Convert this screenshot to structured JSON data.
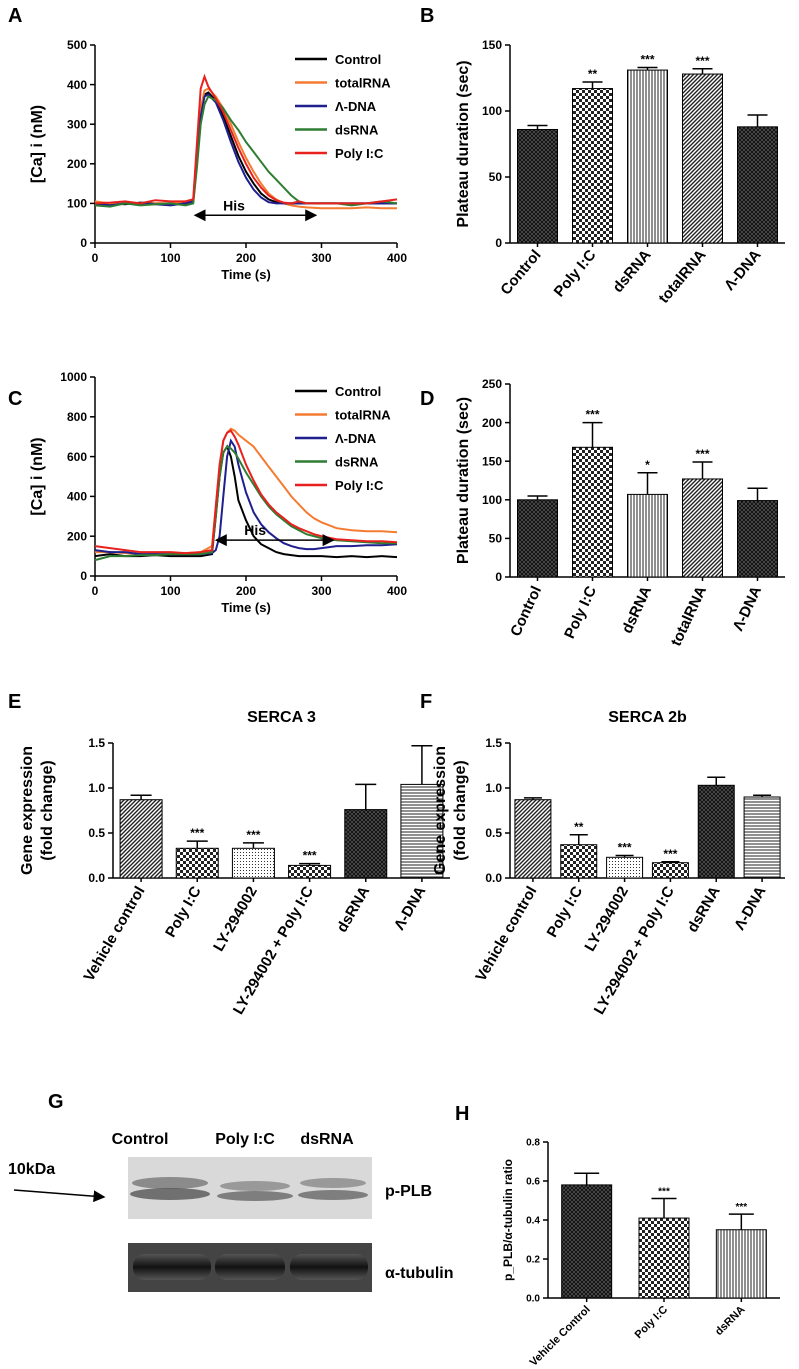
{
  "chart_data": [
    {
      "type": "line",
      "panel": "A",
      "xlabel": "Time (s)",
      "ylabel": "[Ca] i (nM)",
      "xlim": [
        0,
        400
      ],
      "xticks": [
        0,
        100,
        200,
        300,
        400
      ],
      "ylim": [
        0,
        500
      ],
      "yticks": [
        0,
        100,
        200,
        300,
        400,
        500
      ],
      "x": [
        0,
        20,
        40,
        60,
        80,
        100,
        120,
        130,
        135,
        140,
        145,
        150,
        160,
        170,
        180,
        190,
        200,
        210,
        220,
        230,
        240,
        250,
        260,
        270,
        280,
        300,
        320,
        340,
        360,
        380,
        400
      ],
      "series": [
        {
          "name": "Control",
          "color": "#000000",
          "values": [
            100,
            100,
            98,
            102,
            100,
            100,
            100,
            105,
            200,
            330,
            375,
            380,
            360,
            320,
            270,
            220,
            180,
            150,
            125,
            110,
            103,
            100,
            100,
            100,
            100,
            100,
            100,
            100,
            100,
            100,
            100
          ]
        },
        {
          "name": "totalRNA",
          "color": "#f47c30",
          "values": [
            105,
            100,
            102,
            98,
            100,
            100,
            105,
            110,
            220,
            340,
            385,
            390,
            370,
            340,
            300,
            255,
            215,
            180,
            150,
            125,
            110,
            100,
            95,
            92,
            90,
            88,
            88,
            88,
            90,
            88,
            88
          ]
        },
        {
          "name": "Λ-DNA",
          "color": "#1f1f8f",
          "values": [
            98,
            95,
            100,
            100,
            98,
            95,
            100,
            105,
            200,
            320,
            370,
            375,
            355,
            310,
            255,
            205,
            165,
            135,
            115,
            103,
            100,
            100,
            100,
            100,
            100,
            100,
            100,
            100,
            100,
            100,
            100
          ]
        },
        {
          "name": "dsRNA",
          "color": "#2e7d32",
          "values": [
            95,
            92,
            100,
            95,
            98,
            100,
            95,
            100,
            190,
            300,
            350,
            370,
            360,
            340,
            310,
            285,
            255,
            230,
            205,
            180,
            160,
            140,
            120,
            105,
            100,
            100,
            100,
            95,
            100,
            105,
            100
          ]
        },
        {
          "name": "Poly I:C",
          "color": "#e8211f",
          "values": [
            100,
            102,
            105,
            100,
            108,
            105,
            105,
            110,
            250,
            390,
            420,
            395,
            365,
            330,
            285,
            240,
            200,
            165,
            140,
            120,
            108,
            102,
            100,
            105,
            100,
            100,
            100,
            100,
            100,
            105,
            110
          ]
        }
      ],
      "annotation": {
        "text": "His",
        "x": [
          130,
          295
        ],
        "y": 70
      }
    },
    {
      "type": "bar",
      "panel": "B",
      "ylabel": "Plateau duration (sec)",
      "ylim": [
        0,
        150
      ],
      "yticks": [
        0,
        50,
        100,
        150
      ],
      "categories": [
        "Control",
        "Poly I:C",
        "dsRNA",
        "totalRNA",
        "Λ-DNA"
      ],
      "values": [
        86,
        117,
        131,
        128,
        88
      ],
      "errors": [
        3,
        5,
        2,
        4,
        9
      ],
      "annotations": [
        null,
        "**",
        "***",
        "***",
        null
      ],
      "patterns": [
        "cross",
        "check",
        "vert",
        "diag",
        "cross"
      ]
    },
    {
      "type": "line",
      "panel": "C",
      "xlabel": "Time (s)",
      "ylabel": "[Ca] i (nM)",
      "xlim": [
        0,
        400
      ],
      "xticks": [
        0,
        100,
        200,
        300,
        400
      ],
      "ylim": [
        0,
        1000
      ],
      "yticks": [
        0,
        200,
        400,
        600,
        800,
        1000
      ],
      "x": [
        0,
        20,
        40,
        60,
        80,
        100,
        120,
        140,
        155,
        160,
        165,
        170,
        175,
        180,
        185,
        190,
        200,
        210,
        220,
        230,
        240,
        250,
        260,
        270,
        280,
        290,
        300,
        320,
        340,
        360,
        380,
        400
      ],
      "series": [
        {
          "name": "Control",
          "color": "#000000",
          "values": [
            100,
            110,
            100,
            100,
            105,
            100,
            100,
            100,
            110,
            300,
            500,
            620,
            650,
            600,
            500,
            380,
            280,
            200,
            160,
            140,
            120,
            110,
            105,
            100,
            100,
            100,
            100,
            95,
            100,
            95,
            100,
            95
          ]
        },
        {
          "name": "totalRNA",
          "color": "#f47c30",
          "values": [
            120,
            120,
            115,
            110,
            110,
            110,
            115,
            120,
            150,
            350,
            550,
            680,
            720,
            740,
            730,
            710,
            680,
            650,
            600,
            550,
            500,
            450,
            400,
            360,
            320,
            290,
            270,
            240,
            230,
            225,
            225,
            220
          ]
        },
        {
          "name": "Λ-DNA",
          "color": "#1f1f8f",
          "values": [
            130,
            120,
            120,
            110,
            110,
            110,
            110,
            110,
            115,
            130,
            200,
            400,
            600,
            680,
            650,
            560,
            420,
            320,
            260,
            220,
            190,
            165,
            150,
            140,
            135,
            135,
            140,
            150,
            150,
            155,
            155,
            160
          ]
        },
        {
          "name": "dsRNA",
          "color": "#2e7d32",
          "values": [
            80,
            100,
            100,
            105,
            105,
            110,
            110,
            110,
            120,
            300,
            500,
            620,
            650,
            640,
            620,
            590,
            520,
            460,
            400,
            350,
            310,
            280,
            250,
            230,
            210,
            200,
            190,
            180,
            175,
            170,
            165,
            165
          ]
        },
        {
          "name": "Poly I:C",
          "color": "#e8211f",
          "values": [
            150,
            140,
            130,
            120,
            120,
            120,
            115,
            120,
            130,
            350,
            560,
            680,
            720,
            730,
            700,
            660,
            560,
            480,
            410,
            360,
            320,
            290,
            260,
            240,
            225,
            210,
            200,
            185,
            180,
            175,
            175,
            170
          ]
        }
      ],
      "annotation": {
        "text": "His",
        "x": [
          158,
          318
        ],
        "y": 180
      }
    },
    {
      "type": "bar",
      "panel": "D",
      "ylabel": "Plateau duration (sec)",
      "ylim": [
        0,
        250
      ],
      "yticks": [
        0,
        50,
        100,
        150,
        200,
        250
      ],
      "categories": [
        "Control",
        "Poly I:C",
        "dsRNA",
        "totalRNA",
        "Λ-DNA"
      ],
      "values": [
        100,
        168,
        107,
        127,
        99
      ],
      "errors": [
        5,
        32,
        28,
        22,
        16
      ],
      "annotations": [
        null,
        "***",
        "*",
        "***",
        null
      ],
      "patterns": [
        "cross",
        "check",
        "vert",
        "diag",
        "cross"
      ]
    },
    {
      "type": "bar",
      "panel": "E",
      "title": "SERCA 3",
      "ylabel": [
        "Gene expression",
        "(fold change)"
      ],
      "ylim": [
        0,
        1.5
      ],
      "yticks": [
        {
          "value": 0,
          "label": "0.0"
        },
        0.5,
        {
          "value": 1,
          "label": "1.0"
        },
        1.5
      ],
      "categories": [
        "Vehicle control",
        "Poly I:C",
        "LY-294002",
        "LY-294002 + Poly I:C",
        "dsRNA",
        "Λ-DNA"
      ],
      "values": [
        0.87,
        0.33,
        0.33,
        0.14,
        0.76,
        1.04
      ],
      "errors": [
        0.05,
        0.08,
        0.06,
        0.02,
        0.28,
        0.43
      ],
      "annotations": [
        null,
        "***",
        "***",
        "***",
        null,
        null
      ],
      "patterns": [
        "diag",
        "check",
        "dots",
        "check",
        "cross",
        "horiz"
      ]
    },
    {
      "type": "bar",
      "panel": "F",
      "title": "SERCA 2b",
      "ylabel": [
        "Gene expression",
        "(fold change)"
      ],
      "ylim": [
        0,
        1.5
      ],
      "yticks": [
        {
          "value": 0,
          "label": "0.0"
        },
        0.5,
        {
          "value": 1,
          "label": "1.0"
        },
        1.5
      ],
      "categories": [
        "Vehicle control",
        "Poly I:C",
        "LY-294002",
        "LY-294002 + Poly I:C",
        "dsRNA",
        "Λ-DNA"
      ],
      "values": [
        0.87,
        0.37,
        0.23,
        0.17,
        1.03,
        0.9
      ],
      "errors": [
        0.02,
        0.11,
        0.02,
        0.01,
        0.09,
        0.02
      ],
      "annotations": [
        null,
        "**",
        "***",
        "***",
        null,
        null
      ],
      "patterns": [
        "diag",
        "check",
        "dots",
        "check",
        "cross",
        "horiz"
      ]
    },
    {
      "type": "bar",
      "panel": "H",
      "ylabel": "p_PLB/α-tubulin ratio",
      "ylim": [
        0,
        0.8
      ],
      "yticks": [
        {
          "value": 0,
          "label": "0.0"
        },
        0.2,
        0.4,
        0.6,
        0.8
      ],
      "categories": [
        "Vehicle Control",
        "Poly I:C",
        "dsRNA"
      ],
      "values": [
        0.58,
        0.41,
        0.35
      ],
      "errors": [
        0.06,
        0.1,
        0.08
      ],
      "annotations": [
        null,
        "***",
        "***"
      ],
      "patterns": [
        "cross",
        "check",
        "vert"
      ]
    }
  ],
  "blot": {
    "panel": "G",
    "lanes": [
      "Control",
      "Poly I:C",
      "dsRNA"
    ],
    "marker": "10kDa",
    "bands": [
      "p-PLB",
      "α-tubulin"
    ]
  }
}
